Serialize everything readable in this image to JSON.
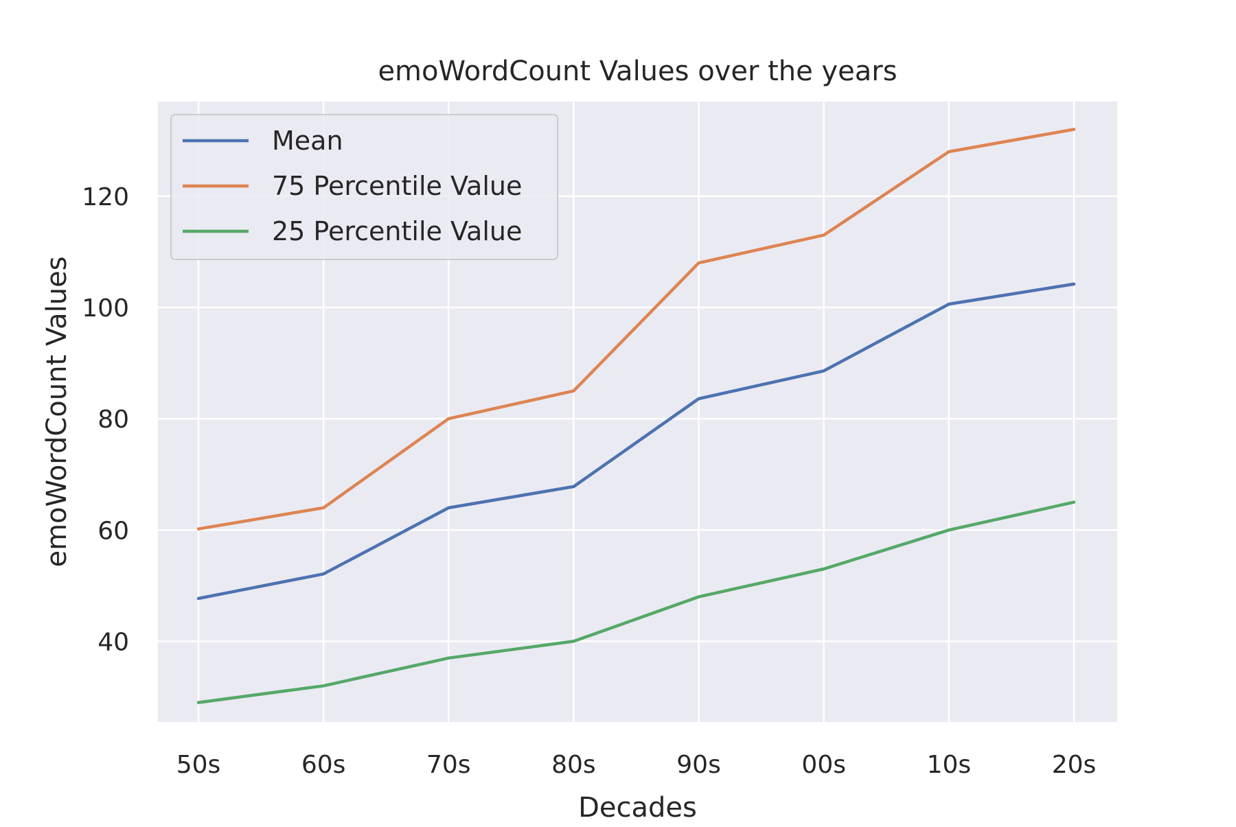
{
  "chart_data": {
    "type": "line",
    "title": "emoWordCount Values over the years",
    "xlabel": "Decades",
    "ylabel": "emoWordCount Values",
    "categories": [
      "50s",
      "60s",
      "70s",
      "80s",
      "90s",
      "00s",
      "10s",
      "20s"
    ],
    "yticks": [
      40,
      60,
      80,
      100,
      120
    ],
    "ylim": [
      25.5,
      137
    ],
    "grid": true,
    "legend_position": "top-left",
    "background": "#EAEAF2",
    "series": [
      {
        "name": "Mean",
        "color": "#4C72B0",
        "values": [
          47.7,
          52.1,
          64.0,
          67.8,
          83.6,
          88.6,
          100.6,
          104.2
        ]
      },
      {
        "name": "75 Percentile Value",
        "color": "#DD8452",
        "values": [
          60.2,
          64.0,
          80.0,
          85.0,
          108.0,
          113.0,
          128.0,
          132.0
        ]
      },
      {
        "name": "25 Percentile Value",
        "color": "#55A868",
        "values": [
          29.0,
          32.0,
          37.0,
          40.0,
          48.0,
          53.0,
          60.0,
          65.0
        ]
      }
    ]
  }
}
